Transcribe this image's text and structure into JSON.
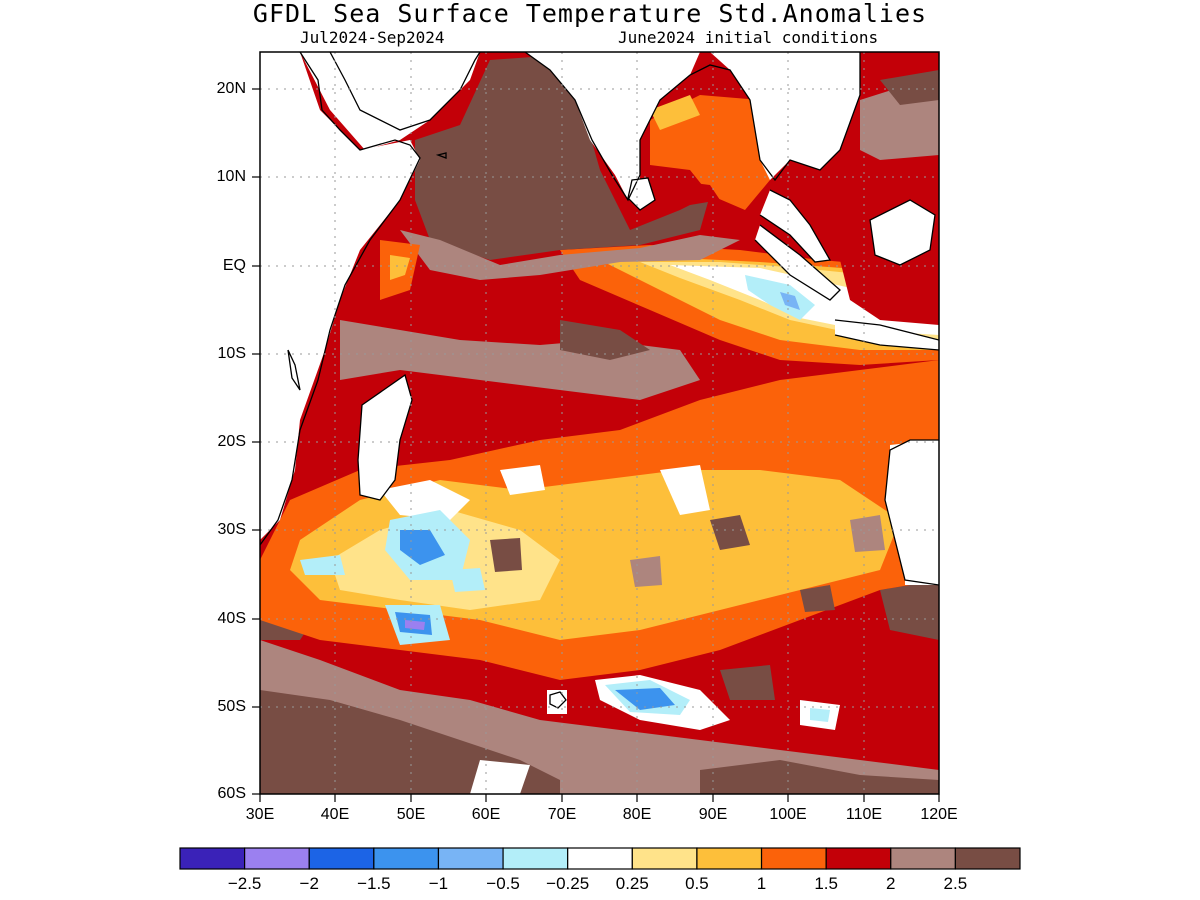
{
  "title": "GFDL Sea Surface Temperature Std.Anomalies",
  "subtitle_left": "Jul2024-Sep2024",
  "subtitle_right": "June2024 initial conditions",
  "lat_ticks": [
    "20N",
    "10N",
    "EQ",
    "10S",
    "20S",
    "30S",
    "40S",
    "50S",
    "60S"
  ],
  "lon_ticks": [
    "30E",
    "40E",
    "50E",
    "60E",
    "70E",
    "80E",
    "90E",
    "100E",
    "110E",
    "120E"
  ],
  "colorbar": {
    "colors": [
      "#3a22b8",
      "#9b80f0",
      "#1c64e6",
      "#3c93ee",
      "#78b4f5",
      "#b3eef9",
      "#ffffff",
      "#ffe38a",
      "#fdbf3a",
      "#fb620a",
      "#c30008",
      "#ad857e",
      "#784d44"
    ],
    "labels": [
      "-2.5",
      "-2",
      "-1.5",
      "-1",
      "-0.5",
      "-0.25",
      "0.25",
      "0.5",
      "1",
      "1.5",
      "2",
      "2.5"
    ]
  }
}
